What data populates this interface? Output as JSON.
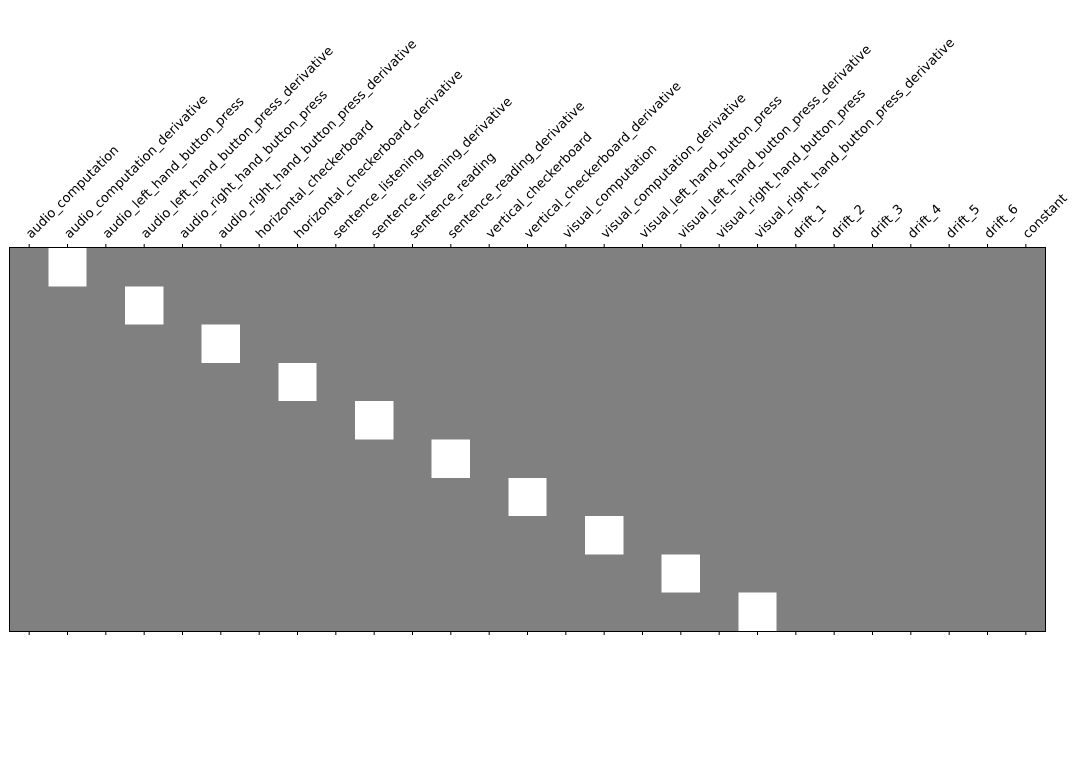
{
  "chart_data": {
    "type": "heatmap",
    "title": "",
    "xlabel": "",
    "ylabel": "",
    "columns": [
      "audio_computation",
      "audio_computation_derivative",
      "audio_left_hand_button_press",
      "audio_left_hand_button_press_derivative",
      "audio_right_hand_button_press",
      "audio_right_hand_button_press_derivative",
      "horizontal_checkerboard",
      "horizontal_checkerboard_derivative",
      "sentence_listening",
      "sentence_listening_derivative",
      "sentence_reading",
      "sentence_reading_derivative",
      "vertical_checkerboard",
      "vertical_checkerboard_derivative",
      "visual_computation",
      "visual_computation_derivative",
      "visual_left_hand_button_press",
      "visual_left_hand_button_press_derivative",
      "visual_right_hand_button_press",
      "visual_right_hand_button_press_derivative",
      "drift_1",
      "drift_2",
      "drift_3",
      "drift_4",
      "drift_5",
      "drift_6",
      "constant"
    ],
    "rows": 10,
    "grid": false,
    "colormap": "gray",
    "value_range": [
      -1,
      1
    ],
    "base_value": 0,
    "nonzero_cells": [
      {
        "row": 0,
        "col": 1,
        "value": 1
      },
      {
        "row": 1,
        "col": 3,
        "value": 1
      },
      {
        "row": 2,
        "col": 5,
        "value": 1
      },
      {
        "row": 3,
        "col": 7,
        "value": 1
      },
      {
        "row": 4,
        "col": 9,
        "value": 1
      },
      {
        "row": 5,
        "col": 11,
        "value": 1
      },
      {
        "row": 6,
        "col": 13,
        "value": 1
      },
      {
        "row": 7,
        "col": 15,
        "value": 1
      },
      {
        "row": 8,
        "col": 17,
        "value": 1
      },
      {
        "row": 9,
        "col": 19,
        "value": 1
      }
    ]
  }
}
